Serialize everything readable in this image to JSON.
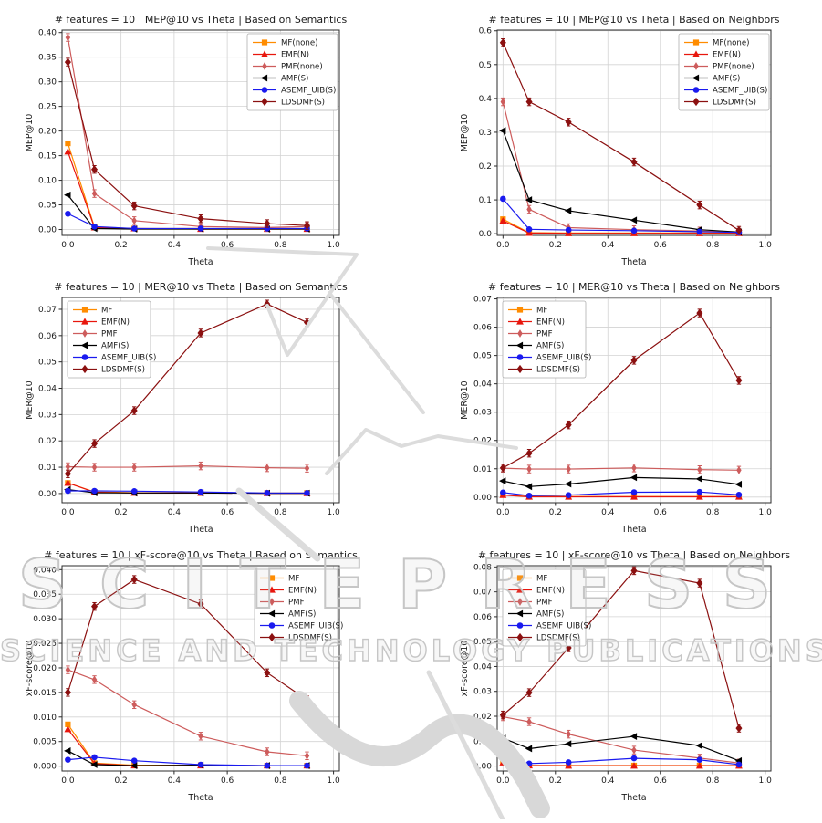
{
  "watermark": {
    "line1": "SCITEPRESS",
    "line2": "SCIENCE AND TECHNOLOGY PUBLICATIONS"
  },
  "chart_data": [
    {
      "id": "mep10-semantics",
      "type": "line",
      "title": "# features = 10 | MEP@10 vs Theta | Based on Semantics",
      "xlabel": "Theta",
      "ylabel": "MEP@10",
      "grid": true,
      "legend_position": "upper-right",
      "x": [
        0.0,
        0.1,
        0.25,
        0.5,
        0.75,
        0.9
      ],
      "xlim": [
        -0.022,
        1.022
      ],
      "ylim": [
        -0.012,
        0.405
      ],
      "xtick_values": [
        0.0,
        0.2,
        0.4,
        0.6,
        0.8,
        1.0
      ],
      "xtick_labels": [
        "0.0",
        "0.2",
        "0.4",
        "0.6",
        "0.8",
        "1.0"
      ],
      "ytick_values": [
        0.0,
        0.05,
        0.1,
        0.15,
        0.2,
        0.25,
        0.3,
        0.35,
        0.4
      ],
      "ytick_labels": [
        "0.00",
        "0.05",
        "0.10",
        "0.15",
        "0.20",
        "0.25",
        "0.30",
        "0.35",
        "0.40"
      ],
      "series": [
        {
          "name": "MF(none)",
          "color": "#ff8c00",
          "marker": "square",
          "error_bars": false,
          "values": [
            0.175,
            0.005,
            0.002,
            0.002,
            0.002,
            0.002
          ]
        },
        {
          "name": "EMF(N)",
          "color": "#e8160d",
          "marker": "triangle-up",
          "error_bars": false,
          "values": [
            0.158,
            0.004,
            0.002,
            0.001,
            0.001,
            0.001
          ]
        },
        {
          "name": "PMF(none)",
          "color": "#cd5c5c",
          "marker": "thin-diamond",
          "error_bars": true,
          "values": [
            0.39,
            0.073,
            0.018,
            0.006,
            0.004,
            0.006
          ]
        },
        {
          "name": "AMF(S)",
          "color": "#000000",
          "marker": "triangle-left",
          "error_bars": false,
          "values": [
            0.07,
            0.002,
            0.001,
            0.001,
            0.001,
            0.001
          ]
        },
        {
          "name": "ASEMF_UIB(S)",
          "color": "#1a1aef",
          "marker": "circle",
          "error_bars": false,
          "values": [
            0.032,
            0.006,
            0.002,
            0.002,
            0.002,
            0.002
          ]
        },
        {
          "name": "LDSDMF(S)",
          "color": "#8b1010",
          "marker": "diamond",
          "error_bars": true,
          "values": [
            0.34,
            0.122,
            0.048,
            0.022,
            0.012,
            0.008
          ]
        }
      ]
    },
    {
      "id": "mep10-neighbors",
      "type": "line",
      "title": "# features = 10 | MEP@10 vs Theta | Based on Neighbors",
      "xlabel": "Theta",
      "ylabel": "MEP@10",
      "grid": true,
      "legend_position": "upper-right",
      "x": [
        0.0,
        0.1,
        0.25,
        0.5,
        0.75,
        0.9
      ],
      "xlim": [
        -0.022,
        1.022
      ],
      "ylim": [
        -0.005,
        0.602
      ],
      "xtick_values": [
        0.0,
        0.2,
        0.4,
        0.6,
        0.8,
        1.0
      ],
      "xtick_labels": [
        "0.0",
        "0.2",
        "0.4",
        "0.6",
        "0.8",
        "1.0"
      ],
      "ytick_values": [
        0.0,
        0.1,
        0.2,
        0.3,
        0.4,
        0.5,
        0.6
      ],
      "ytick_labels": [
        "0.0",
        "0.1",
        "0.2",
        "0.3",
        "0.4",
        "0.5",
        "0.6"
      ],
      "series": [
        {
          "name": "MF(none)",
          "color": "#ff8c00",
          "marker": "square",
          "error_bars": false,
          "values": [
            0.043,
            0.003,
            0.002,
            0.002,
            0.002,
            0.002
          ]
        },
        {
          "name": "EMF(N)",
          "color": "#e8160d",
          "marker": "triangle-up",
          "error_bars": false,
          "values": [
            0.038,
            0.002,
            0.001,
            0.001,
            0.001,
            0.001
          ]
        },
        {
          "name": "PMF(none)",
          "color": "#cd5c5c",
          "marker": "thin-diamond",
          "error_bars": true,
          "values": [
            0.39,
            0.072,
            0.018,
            0.012,
            0.008,
            0.005
          ]
        },
        {
          "name": "AMF(S)",
          "color": "#000000",
          "marker": "triangle-left",
          "error_bars": false,
          "values": [
            0.305,
            0.1,
            0.068,
            0.04,
            0.012,
            0.005
          ]
        },
        {
          "name": "ASEMF_UIB(S)",
          "color": "#1a1aef",
          "marker": "circle",
          "error_bars": false,
          "values": [
            0.103,
            0.013,
            0.011,
            0.009,
            0.006,
            0.004
          ]
        },
        {
          "name": "LDSDMF(S)",
          "color": "#8b1010",
          "marker": "diamond",
          "error_bars": true,
          "values": [
            0.565,
            0.39,
            0.33,
            0.212,
            0.085,
            0.01
          ]
        }
      ]
    },
    {
      "id": "mer10-semantics",
      "type": "line",
      "title": "# features = 10 | MER@10 vs Theta | Based on Semantics",
      "xlabel": "Theta",
      "ylabel": "MER@10",
      "grid": true,
      "legend_position": "upper-left",
      "x": [
        0.0,
        0.1,
        0.25,
        0.5,
        0.75,
        0.9
      ],
      "xlim": [
        -0.022,
        1.022
      ],
      "ylim": [
        -0.0035,
        0.0745
      ],
      "xtick_values": [
        0.0,
        0.2,
        0.4,
        0.6,
        0.8,
        1.0
      ],
      "xtick_labels": [
        "0.0",
        "0.2",
        "0.4",
        "0.6",
        "0.8",
        "1.0"
      ],
      "ytick_values": [
        0.0,
        0.01,
        0.02,
        0.03,
        0.04,
        0.05,
        0.06,
        0.07
      ],
      "ytick_labels": [
        "0.00",
        "0.01",
        "0.02",
        "0.03",
        "0.04",
        "0.05",
        "0.06",
        "0.07"
      ],
      "series": [
        {
          "name": "MF",
          "color": "#ff8c00",
          "marker": "square",
          "error_bars": false,
          "values": [
            0.004,
            0.0006,
            0.0003,
            0.0002,
            0.0002,
            0.0002
          ]
        },
        {
          "name": "EMF(N)",
          "color": "#e8160d",
          "marker": "triangle-up",
          "error_bars": false,
          "values": [
            0.004,
            0.0005,
            0.0002,
            0.0002,
            0.0001,
            0.0001
          ]
        },
        {
          "name": "PMF",
          "color": "#cd5c5c",
          "marker": "thin-diamond",
          "error_bars": true,
          "values": [
            0.0102,
            0.01,
            0.01,
            0.0105,
            0.0098,
            0.0096
          ]
        },
        {
          "name": "AMF(S)",
          "color": "#000000",
          "marker": "triangle-left",
          "error_bars": false,
          "values": [
            0.0015,
            0.0003,
            0.0002,
            0.0002,
            0.0001,
            0.0001
          ]
        },
        {
          "name": "ASEMF_UIB(S)",
          "color": "#1a1aef",
          "marker": "circle",
          "error_bars": false,
          "values": [
            0.001,
            0.001,
            0.0009,
            0.0006,
            0.0002,
            0.0002
          ]
        },
        {
          "name": "LDSDMF(S)",
          "color": "#8b1010",
          "marker": "diamond",
          "error_bars": true,
          "values": [
            0.0075,
            0.019,
            0.0315,
            0.061,
            0.072,
            0.065
          ]
        }
      ]
    },
    {
      "id": "mer10-neighbors",
      "type": "line",
      "title": "# features = 10 | MER@10 vs Theta | Based on Neighbors",
      "xlabel": "Theta",
      "ylabel": "MER@10",
      "grid": true,
      "legend_position": "upper-left",
      "x": [
        0.0,
        0.1,
        0.25,
        0.5,
        0.75,
        0.9
      ],
      "xlim": [
        -0.022,
        1.022
      ],
      "ylim": [
        -0.002,
        0.0705
      ],
      "xtick_values": [
        0.0,
        0.2,
        0.4,
        0.6,
        0.8,
        1.0
      ],
      "xtick_labels": [
        "0.0",
        "0.2",
        "0.4",
        "0.6",
        "0.8",
        "1.0"
      ],
      "ytick_values": [
        0.0,
        0.01,
        0.02,
        0.03,
        0.04,
        0.05,
        0.06,
        0.07
      ],
      "ytick_labels": [
        "0.00",
        "0.01",
        "0.02",
        "0.03",
        "0.04",
        "0.05",
        "0.06",
        "0.07"
      ],
      "series": [
        {
          "name": "MF",
          "color": "#ff8c00",
          "marker": "square",
          "error_bars": false,
          "values": [
            0.0008,
            0.0002,
            0.0002,
            0.0002,
            0.0002,
            0.0002
          ]
        },
        {
          "name": "EMF(N)",
          "color": "#e8160d",
          "marker": "triangle-up",
          "error_bars": false,
          "values": [
            0.0007,
            0.0001,
            0.0001,
            0.0001,
            0.0001,
            0.0001
          ]
        },
        {
          "name": "PMF",
          "color": "#cd5c5c",
          "marker": "thin-diamond",
          "error_bars": true,
          "values": [
            0.0102,
            0.0099,
            0.0099,
            0.0103,
            0.0097,
            0.0095
          ]
        },
        {
          "name": "AMF(S)",
          "color": "#000000",
          "marker": "triangle-left",
          "error_bars": false,
          "values": [
            0.0057,
            0.0037,
            0.0046,
            0.0069,
            0.0064,
            0.0045
          ]
        },
        {
          "name": "ASEMF_UIB(S)",
          "color": "#1a1aef",
          "marker": "circle",
          "error_bars": false,
          "values": [
            0.0016,
            0.0005,
            0.0007,
            0.0017,
            0.0018,
            0.0008
          ]
        },
        {
          "name": "LDSDMF(S)",
          "color": "#8b1010",
          "marker": "diamond",
          "error_bars": true,
          "values": [
            0.0103,
            0.0155,
            0.0255,
            0.0483,
            0.065,
            0.0412
          ]
        }
      ]
    },
    {
      "id": "xfscore10-semantics",
      "type": "line",
      "title": "# features = 10 | xF-score@10 vs Theta | Based on Semantics",
      "xlabel": "Theta",
      "ylabel": "xF-score@10",
      "grid": true,
      "legend_position": "upper-right",
      "x": [
        0.0,
        0.1,
        0.25,
        0.5,
        0.75,
        0.9
      ],
      "xlim": [
        -0.022,
        1.022
      ],
      "ylim": [
        -0.001,
        0.0408
      ],
      "xtick_values": [
        0.0,
        0.2,
        0.4,
        0.6,
        0.8,
        1.0
      ],
      "xtick_labels": [
        "0.0",
        "0.2",
        "0.4",
        "0.6",
        "0.8",
        "1.0"
      ],
      "ytick_values": [
        0.0,
        0.005,
        0.01,
        0.015,
        0.02,
        0.025,
        0.03,
        0.035,
        0.04
      ],
      "ytick_labels": [
        "0.000",
        "0.005",
        "0.010",
        "0.015",
        "0.020",
        "0.025",
        "0.030",
        "0.035",
        "0.040"
      ],
      "series": [
        {
          "name": "MF",
          "color": "#ff8c00",
          "marker": "square",
          "error_bars": false,
          "values": [
            0.0085,
            0.0006,
            0.0002,
            0.0002,
            0.0001,
            0.0001
          ]
        },
        {
          "name": "EMF(N)",
          "color": "#e8160d",
          "marker": "triangle-up",
          "error_bars": false,
          "values": [
            0.0075,
            0.0005,
            0.0001,
            0.0001,
            0.0001,
            0.0001
          ]
        },
        {
          "name": "PMF",
          "color": "#cd5c5c",
          "marker": "thin-diamond",
          "error_bars": true,
          "values": [
            0.0196,
            0.0176,
            0.0125,
            0.0061,
            0.0029,
            0.0021
          ]
        },
        {
          "name": "AMF(S)",
          "color": "#000000",
          "marker": "triangle-left",
          "error_bars": false,
          "values": [
            0.0031,
            0.0003,
            0.0001,
            0.0002,
            0.0001,
            0.0001
          ]
        },
        {
          "name": "ASEMF_UIB(S)",
          "color": "#1a1aef",
          "marker": "circle",
          "error_bars": false,
          "values": [
            0.0013,
            0.0018,
            0.0011,
            0.0003,
            0.0001,
            0.0001
          ]
        },
        {
          "name": "LDSDMF(S)",
          "color": "#8b1010",
          "marker": "diamond",
          "error_bars": true,
          "values": [
            0.015,
            0.0325,
            0.038,
            0.033,
            0.019,
            0.0135
          ]
        }
      ]
    },
    {
      "id": "xfscore10-neighbors",
      "type": "line",
      "title": "# features = 10 | xF-score@10 vs Theta | Based on Neighbors",
      "xlabel": "Theta",
      "ylabel": "xF-score@10",
      "grid": true,
      "legend_position": "upper-left",
      "x": [
        0.0,
        0.1,
        0.25,
        0.5,
        0.75,
        0.9
      ],
      "xlim": [
        -0.022,
        1.022
      ],
      "ylim": [
        -0.002,
        0.0805
      ],
      "xtick_values": [
        0.0,
        0.2,
        0.4,
        0.6,
        0.8,
        1.0
      ],
      "xtick_labels": [
        "0.0",
        "0.2",
        "0.4",
        "0.6",
        "0.8",
        "1.0"
      ],
      "ytick_values": [
        0.0,
        0.01,
        0.02,
        0.03,
        0.04,
        0.05,
        0.06,
        0.07,
        0.08
      ],
      "ytick_labels": [
        "0.00",
        "0.01",
        "0.02",
        "0.03",
        "0.04",
        "0.05",
        "0.06",
        "0.07",
        "0.08"
      ],
      "series": [
        {
          "name": "MF",
          "color": "#ff8c00",
          "marker": "square",
          "error_bars": false,
          "values": [
            0.0018,
            0.0003,
            0.0002,
            0.0002,
            0.0002,
            0.0002
          ]
        },
        {
          "name": "EMF(N)",
          "color": "#e8160d",
          "marker": "triangle-up",
          "error_bars": false,
          "values": [
            0.0014,
            0.0002,
            0.0001,
            0.0001,
            0.0001,
            0.0001
          ]
        },
        {
          "name": "PMF",
          "color": "#cd5c5c",
          "marker": "thin-diamond",
          "error_bars": true,
          "values": [
            0.0198,
            0.0178,
            0.0128,
            0.0064,
            0.0032,
            0.0012
          ]
        },
        {
          "name": "AMF(S)",
          "color": "#000000",
          "marker": "triangle-left",
          "error_bars": false,
          "values": [
            0.0112,
            0.007,
            0.0089,
            0.0119,
            0.0082,
            0.0021
          ]
        },
        {
          "name": "ASEMF_UIB(S)",
          "color": "#1a1aef",
          "marker": "circle",
          "error_bars": false,
          "values": [
            0.0035,
            0.001,
            0.0015,
            0.0031,
            0.0025,
            0.0006
          ]
        },
        {
          "name": "LDSDMF(S)",
          "color": "#8b1010",
          "marker": "diamond",
          "error_bars": true,
          "values": [
            0.0205,
            0.0295,
            0.0475,
            0.0785,
            0.0735,
            0.0152
          ]
        }
      ]
    }
  ],
  "style": {
    "grid_color": "#d3d3d3",
    "spine_color": "#2b2b2b",
    "watermark_color": "#dcdcdc"
  }
}
